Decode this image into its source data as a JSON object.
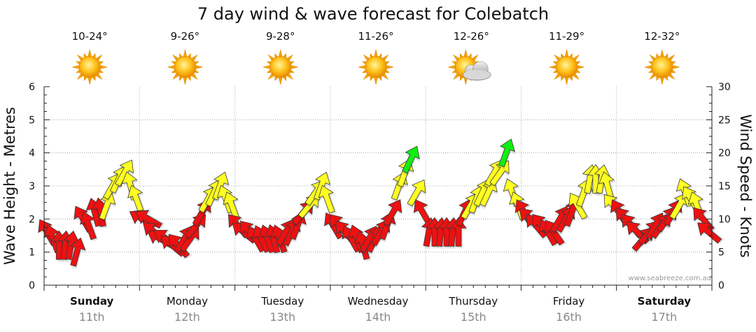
{
  "chart_data": {
    "type": "scatter",
    "title": "7 day wind & wave forecast for Colebatch",
    "ylabel_left": "Wave Height - Metres",
    "ylabel_right": "Wind Speed - Knots",
    "ylim_left": [
      0,
      6
    ],
    "ylim_right": [
      0,
      30
    ],
    "yticks_left": [
      "0",
      "1",
      "2",
      "3",
      "4",
      "5",
      "6"
    ],
    "yticks_right": [
      "0",
      "5",
      "10",
      "15",
      "20",
      "25",
      "30"
    ],
    "watermark": "www.seabreeze.com.au",
    "colors": {
      "red": "#ee1111",
      "yellow": "#ffff22",
      "green": "#11ee11",
      "grid": "#999999"
    },
    "days": [
      {
        "name": "Sunday",
        "date": "11th",
        "temp": "10-24°",
        "weather": "sunny-icon",
        "wind": [
          {
            "knots": 8,
            "dir": 330
          },
          {
            "knots": 7,
            "dir": 340
          },
          {
            "knots": 6,
            "dir": 0
          },
          {
            "knots": 6,
            "dir": 5
          },
          {
            "knots": 6,
            "dir": 10
          },
          {
            "knots": 5,
            "dir": 15
          },
          {
            "knots": 10,
            "dir": 330
          },
          {
            "knots": 9,
            "dir": 340
          },
          {
            "knots": 11,
            "dir": 345
          },
          {
            "knots": 11,
            "dir": 350
          },
          {
            "knots": 12,
            "dir": 20
          },
          {
            "knots": 15,
            "dir": 30
          },
          {
            "knots": 16,
            "dir": 25
          },
          {
            "knots": 17,
            "dir": 30
          },
          {
            "knots": 15,
            "dir": 345
          },
          {
            "knots": 13,
            "dir": 340
          }
        ]
      },
      {
        "name": "Monday",
        "date": "12th",
        "temp": "9-26°",
        "weather": "sunny-icon",
        "wind": [
          {
            "knots": 10,
            "dir": 300
          },
          {
            "knots": 10,
            "dir": 300
          },
          {
            "knots": 8,
            "dir": 310
          },
          {
            "knots": 7,
            "dir": 300
          },
          {
            "knots": 7,
            "dir": 305
          },
          {
            "knots": 6,
            "dir": 310
          },
          {
            "knots": 6,
            "dir": 320
          },
          {
            "knots": 7,
            "dir": 30
          },
          {
            "knots": 7,
            "dir": 35
          },
          {
            "knots": 9,
            "dir": 40
          },
          {
            "knots": 11,
            "dir": 30
          },
          {
            "knots": 13,
            "dir": 30
          },
          {
            "knots": 14,
            "dir": 25
          },
          {
            "knots": 15,
            "dir": 20
          },
          {
            "knots": 13,
            "dir": 340
          },
          {
            "knots": 12,
            "dir": 340
          }
        ]
      },
      {
        "name": "Tuesday",
        "date": "13th",
        "temp": "9-28°",
        "weather": "sunny-icon",
        "wind": [
          {
            "knots": 9,
            "dir": 320
          },
          {
            "knots": 8,
            "dir": 310
          },
          {
            "knots": 8,
            "dir": 320
          },
          {
            "knots": 7,
            "dir": 330
          },
          {
            "knots": 7,
            "dir": 335
          },
          {
            "knots": 7,
            "dir": 340
          },
          {
            "knots": 7,
            "dir": 345
          },
          {
            "knots": 7,
            "dir": 340
          },
          {
            "knots": 8,
            "dir": 30
          },
          {
            "knots": 8,
            "dir": 25
          },
          {
            "knots": 9,
            "dir": 20
          },
          {
            "knots": 11,
            "dir": 40
          },
          {
            "knots": 12,
            "dir": 40
          },
          {
            "knots": 14,
            "dir": 35
          },
          {
            "knots": 15,
            "dir": 20
          },
          {
            "knots": 13,
            "dir": 340
          }
        ]
      },
      {
        "name": "Wednesday",
        "date": "14th",
        "temp": "11-26°",
        "weather": "sunny-icon",
        "wind": [
          {
            "knots": 9,
            "dir": 330
          },
          {
            "knots": 9,
            "dir": 320
          },
          {
            "knots": 8,
            "dir": 320
          },
          {
            "knots": 7,
            "dir": 330
          },
          {
            "knots": 7,
            "dir": 340
          },
          {
            "knots": 6,
            "dir": 345
          },
          {
            "knots": 7,
            "dir": 30
          },
          {
            "knots": 7,
            "dir": 25
          },
          {
            "knots": 8,
            "dir": 30
          },
          {
            "knots": 9,
            "dir": 20
          },
          {
            "knots": 11,
            "dir": 30
          },
          {
            "knots": 15,
            "dir": 20
          },
          {
            "knots": 17,
            "dir": 20
          },
          {
            "knots": 19,
            "dir": 25
          },
          {
            "knots": 14,
            "dir": 30
          },
          {
            "knots": 11,
            "dir": 330
          }
        ]
      },
      {
        "name": "Thursday",
        "date": "15th",
        "temp": "12-26°",
        "weather": "partly-cloudy-icon",
        "wind": [
          {
            "knots": 8,
            "dir": 10
          },
          {
            "knots": 8,
            "dir": 0
          },
          {
            "knots": 8,
            "dir": 5
          },
          {
            "knots": 8,
            "dir": 0
          },
          {
            "knots": 8,
            "dir": 5
          },
          {
            "knots": 8,
            "dir": 0
          },
          {
            "knots": 11,
            "dir": 25
          },
          {
            "knots": 12,
            "dir": 30
          },
          {
            "knots": 13,
            "dir": 20
          },
          {
            "knots": 14,
            "dir": 25
          },
          {
            "knots": 14,
            "dir": 25
          },
          {
            "knots": 17,
            "dir": 30
          },
          {
            "knots": 17,
            "dir": 35
          },
          {
            "knots": 20,
            "dir": 20
          },
          {
            "knots": 14,
            "dir": 340
          },
          {
            "knots": 12,
            "dir": 340
          }
        ]
      },
      {
        "name": "Friday",
        "date": "16th",
        "temp": "11-29°",
        "weather": "sunny-icon",
        "wind": [
          {
            "knots": 11,
            "dir": 330
          },
          {
            "knots": 10,
            "dir": 315
          },
          {
            "knots": 9,
            "dir": 320
          },
          {
            "knots": 9,
            "dir": 320
          },
          {
            "knots": 8,
            "dir": 330
          },
          {
            "knots": 8,
            "dir": 325
          },
          {
            "knots": 10,
            "dir": 30
          },
          {
            "knots": 10,
            "dir": 30
          },
          {
            "knots": 11,
            "dir": 20
          },
          {
            "knots": 12,
            "dir": 330
          },
          {
            "knots": 14,
            "dir": 20
          },
          {
            "knots": 16,
            "dir": 10
          },
          {
            "knots": 16,
            "dir": 0
          },
          {
            "knots": 16,
            "dir": 10
          },
          {
            "knots": 15,
            "dir": 345
          },
          {
            "knots": 12,
            "dir": 320
          }
        ]
      },
      {
        "name": "Saturday",
        "date": "17th",
        "temp": "12-32°",
        "weather": "sunny-icon",
        "wind": [
          {
            "knots": 11,
            "dir": 330
          },
          {
            "knots": 10,
            "dir": 320
          },
          {
            "knots": 9,
            "dir": 320
          },
          {
            "knots": 8,
            "dir": 315
          },
          {
            "knots": 7,
            "dir": 40
          },
          {
            "knots": 8,
            "dir": 40
          },
          {
            "knots": 9,
            "dir": 30
          },
          {
            "knots": 9,
            "dir": 35
          },
          {
            "knots": 10,
            "dir": 35
          },
          {
            "knots": 11,
            "dir": 30
          },
          {
            "knots": 12,
            "dir": 30
          },
          {
            "knots": 14,
            "dir": 340
          },
          {
            "knots": 13,
            "dir": 330
          },
          {
            "knots": 12,
            "dir": 340
          },
          {
            "knots": 10,
            "dir": 320
          },
          {
            "knots": 8,
            "dir": 310
          }
        ]
      }
    ]
  }
}
